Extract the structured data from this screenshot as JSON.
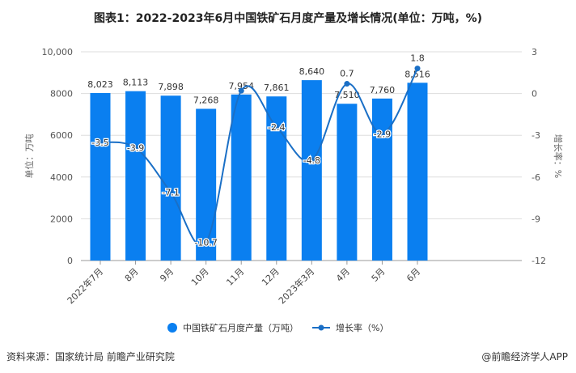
{
  "chart_data": {
    "type": "bar+line",
    "title": "图表1：2022-2023年6月中国铁矿石月度产量及增长情况(单位：万吨，%)",
    "categories": [
      "2022年7月",
      "8月",
      "9月",
      "10月",
      "11月",
      "12月",
      "2023年3月",
      "4月",
      "5月",
      "6月"
    ],
    "series": [
      {
        "name": "中国铁矿石月度产量（万吨）",
        "type": "bar",
        "axis": "left",
        "color": "#0a7ff0",
        "values": [
          8023,
          8113,
          7898,
          7268,
          7954,
          7861,
          8640,
          7510,
          7760,
          8516
        ],
        "labels": [
          "8,023",
          "8,113",
          "7,898",
          "7,268",
          "7,954",
          "7,861",
          "8,640",
          "7,510",
          "7,760",
          "8,516"
        ]
      },
      {
        "name": "增长率（%）",
        "type": "line",
        "axis": "right",
        "color": "#1a6fc6",
        "values": [
          -3.5,
          -3.9,
          -7.1,
          -10.7,
          0.2,
          -2.4,
          -4.8,
          0.7,
          -2.9,
          1.8
        ],
        "labels": [
          "-3.5",
          "-3.9",
          "-7.1",
          "-10.7",
          "",
          "-2.4",
          "-4.8",
          "0.7",
          "-2.9",
          "1.8"
        ]
      }
    ],
    "ylabel": "单位：万吨",
    "ylim": [
      0,
      10000
    ],
    "yticks": [
      "0",
      "2000",
      "4000",
      "6000",
      "8000",
      "10,000"
    ],
    "y2label": "增长率：%",
    "y2lim": [
      -12,
      3
    ],
    "y2ticks": [
      "-12",
      "-9",
      "-6",
      "-3",
      "0",
      "3"
    ],
    "grid": true,
    "legend": "bottom"
  },
  "source": "资料来源：国家统计局 前瞻产业研究院",
  "app": "@前瞻经济学人APP",
  "watermark": "前瞻产业研究院"
}
